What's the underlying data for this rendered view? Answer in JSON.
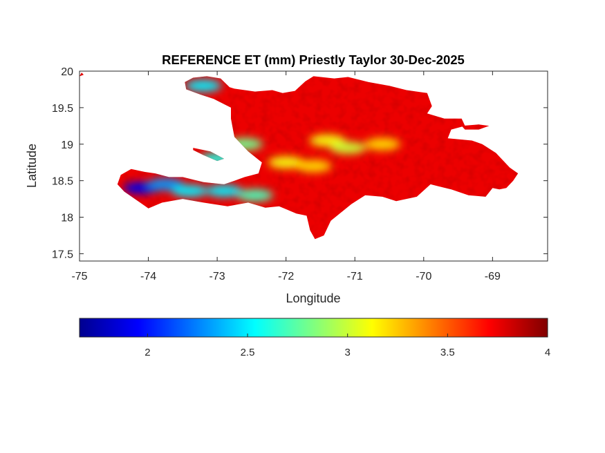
{
  "chart_data": {
    "type": "heatmap",
    "title": "REFERENCE ET (mm) Priestly Taylor 30-Dec-2025",
    "xlabel": "Longitude",
    "ylabel": "Latitude",
    "xlim": [
      -75,
      -68.2
    ],
    "ylim": [
      17.4,
      20
    ],
    "x_ticks": [
      -75,
      -74,
      -73,
      -72,
      -71,
      -70,
      -69
    ],
    "x_tick_labels": [
      "-75",
      "-74",
      "-73",
      "-72",
      "-71",
      "-70",
      "-69"
    ],
    "y_ticks": [
      17.5,
      18,
      18.5,
      19,
      19.5,
      20
    ],
    "y_tick_labels": [
      "17.5",
      "18",
      "18.5",
      "19",
      "19.5",
      "20"
    ],
    "colorbar": {
      "colormap": "jet",
      "range": [
        1.66,
        4.0
      ],
      "ticks": [
        2,
        2.5,
        3,
        3.5,
        4
      ],
      "tick_labels": [
        "2",
        "2.5",
        "3",
        "3.5",
        "4"
      ],
      "location": "below"
    },
    "land_outline": [
      [
        -75,
        19.93
      ],
      [
        -74.97,
        19.98
      ],
      [
        -74.94,
        19.95
      ],
      [
        -75,
        19.93
      ]
    ],
    "main_outline": [
      [
        -73.47,
        19.85
      ],
      [
        -73.35,
        19.91
      ],
      [
        -73.15,
        19.93
      ],
      [
        -72.95,
        19.9
      ],
      [
        -72.82,
        19.78
      ],
      [
        -72.75,
        19.76
      ],
      [
        -72.45,
        19.72
      ],
      [
        -72.2,
        19.74
      ],
      [
        -72.05,
        19.7
      ],
      [
        -71.87,
        19.73
      ],
      [
        -71.72,
        19.86
      ],
      [
        -71.6,
        19.93
      ],
      [
        -71.3,
        19.9
      ],
      [
        -71.1,
        19.92
      ],
      [
        -70.8,
        19.85
      ],
      [
        -70.5,
        19.8
      ],
      [
        -70.25,
        19.74
      ],
      [
        -69.95,
        19.7
      ],
      [
        -69.88,
        19.52
      ],
      [
        -69.95,
        19.42
      ],
      [
        -69.7,
        19.35
      ],
      [
        -69.45,
        19.35
      ],
      [
        -69.4,
        19.25
      ],
      [
        -69.6,
        19.2
      ],
      [
        -69.65,
        19.08
      ],
      [
        -69.3,
        19.05
      ],
      [
        -69.15,
        19.0
      ],
      [
        -68.95,
        18.88
      ],
      [
        -68.75,
        18.68
      ],
      [
        -68.63,
        18.6
      ],
      [
        -68.7,
        18.5
      ],
      [
        -68.8,
        18.4
      ],
      [
        -68.9,
        18.38
      ],
      [
        -69.0,
        18.4
      ],
      [
        -69.1,
        18.28
      ],
      [
        -69.35,
        18.3
      ],
      [
        -69.6,
        18.38
      ],
      [
        -69.9,
        18.45
      ],
      [
        -70.1,
        18.28
      ],
      [
        -70.4,
        18.22
      ],
      [
        -70.6,
        18.28
      ],
      [
        -70.85,
        18.3
      ],
      [
        -71.05,
        18.18
      ],
      [
        -71.35,
        17.95
      ],
      [
        -71.45,
        17.75
      ],
      [
        -71.58,
        17.7
      ],
      [
        -71.65,
        17.82
      ],
      [
        -71.7,
        18.02
      ],
      [
        -71.85,
        18.05
      ],
      [
        -72.1,
        18.15
      ],
      [
        -72.3,
        18.13
      ],
      [
        -72.55,
        18.2
      ],
      [
        -72.85,
        18.15
      ],
      [
        -73.2,
        18.2
      ],
      [
        -73.5,
        18.25
      ],
      [
        -73.8,
        18.2
      ],
      [
        -74.0,
        18.12
      ],
      [
        -74.15,
        18.22
      ],
      [
        -74.35,
        18.35
      ],
      [
        -74.45,
        18.45
      ],
      [
        -74.4,
        18.58
      ],
      [
        -74.25,
        18.66
      ],
      [
        -74.05,
        18.62
      ],
      [
        -73.9,
        18.6
      ],
      [
        -73.7,
        18.55
      ],
      [
        -73.5,
        18.55
      ],
      [
        -73.2,
        18.48
      ],
      [
        -72.9,
        18.45
      ],
      [
        -72.75,
        18.5
      ],
      [
        -72.6,
        18.55
      ],
      [
        -72.4,
        18.6
      ],
      [
        -72.35,
        18.75
      ],
      [
        -72.55,
        18.9
      ],
      [
        -72.75,
        19.1
      ],
      [
        -72.8,
        19.35
      ],
      [
        -72.8,
        19.5
      ],
      [
        -73.05,
        19.62
      ],
      [
        -73.25,
        19.68
      ],
      [
        -73.45,
        19.75
      ],
      [
        -73.47,
        19.85
      ]
    ],
    "islands": [
      [
        [
          -73.35,
          18.95
        ],
        [
          -73.1,
          18.9
        ],
        [
          -72.9,
          18.8
        ],
        [
          -73.0,
          18.77
        ],
        [
          -73.2,
          18.85
        ],
        [
          -73.35,
          18.92
        ],
        [
          -73.35,
          18.95
        ]
      ],
      [
        [
          -69.45,
          19.25
        ],
        [
          -69.2,
          19.27
        ],
        [
          -69.05,
          19.25
        ],
        [
          -69.2,
          19.2
        ],
        [
          -69.4,
          19.2
        ],
        [
          -69.45,
          19.25
        ]
      ]
    ],
    "low_et_zones": [
      {
        "lon": -74.1,
        "lat": 18.4,
        "value": 1.9
      },
      {
        "lon": -73.75,
        "lat": 18.45,
        "value": 2.3
      },
      {
        "lon": -73.4,
        "lat": 18.36,
        "value": 2.5
      },
      {
        "lon": -72.9,
        "lat": 18.36,
        "value": 2.5
      },
      {
        "lon": -72.45,
        "lat": 18.3,
        "value": 2.7
      },
      {
        "lon": -73.2,
        "lat": 19.8,
        "value": 2.5
      },
      {
        "lon": -73.0,
        "lat": 18.8,
        "value": 2.6
      },
      {
        "lon": -72.6,
        "lat": 19.0,
        "value": 2.8
      },
      {
        "lon": -72.0,
        "lat": 18.75,
        "value": 3.1
      },
      {
        "lon": -71.4,
        "lat": 19.05,
        "value": 3.1
      },
      {
        "lon": -71.1,
        "lat": 18.95,
        "value": 3.0
      },
      {
        "lon": -70.6,
        "lat": 19.0,
        "value": 3.2
      },
      {
        "lon": -71.6,
        "lat": 18.7,
        "value": 3.2
      }
    ]
  }
}
